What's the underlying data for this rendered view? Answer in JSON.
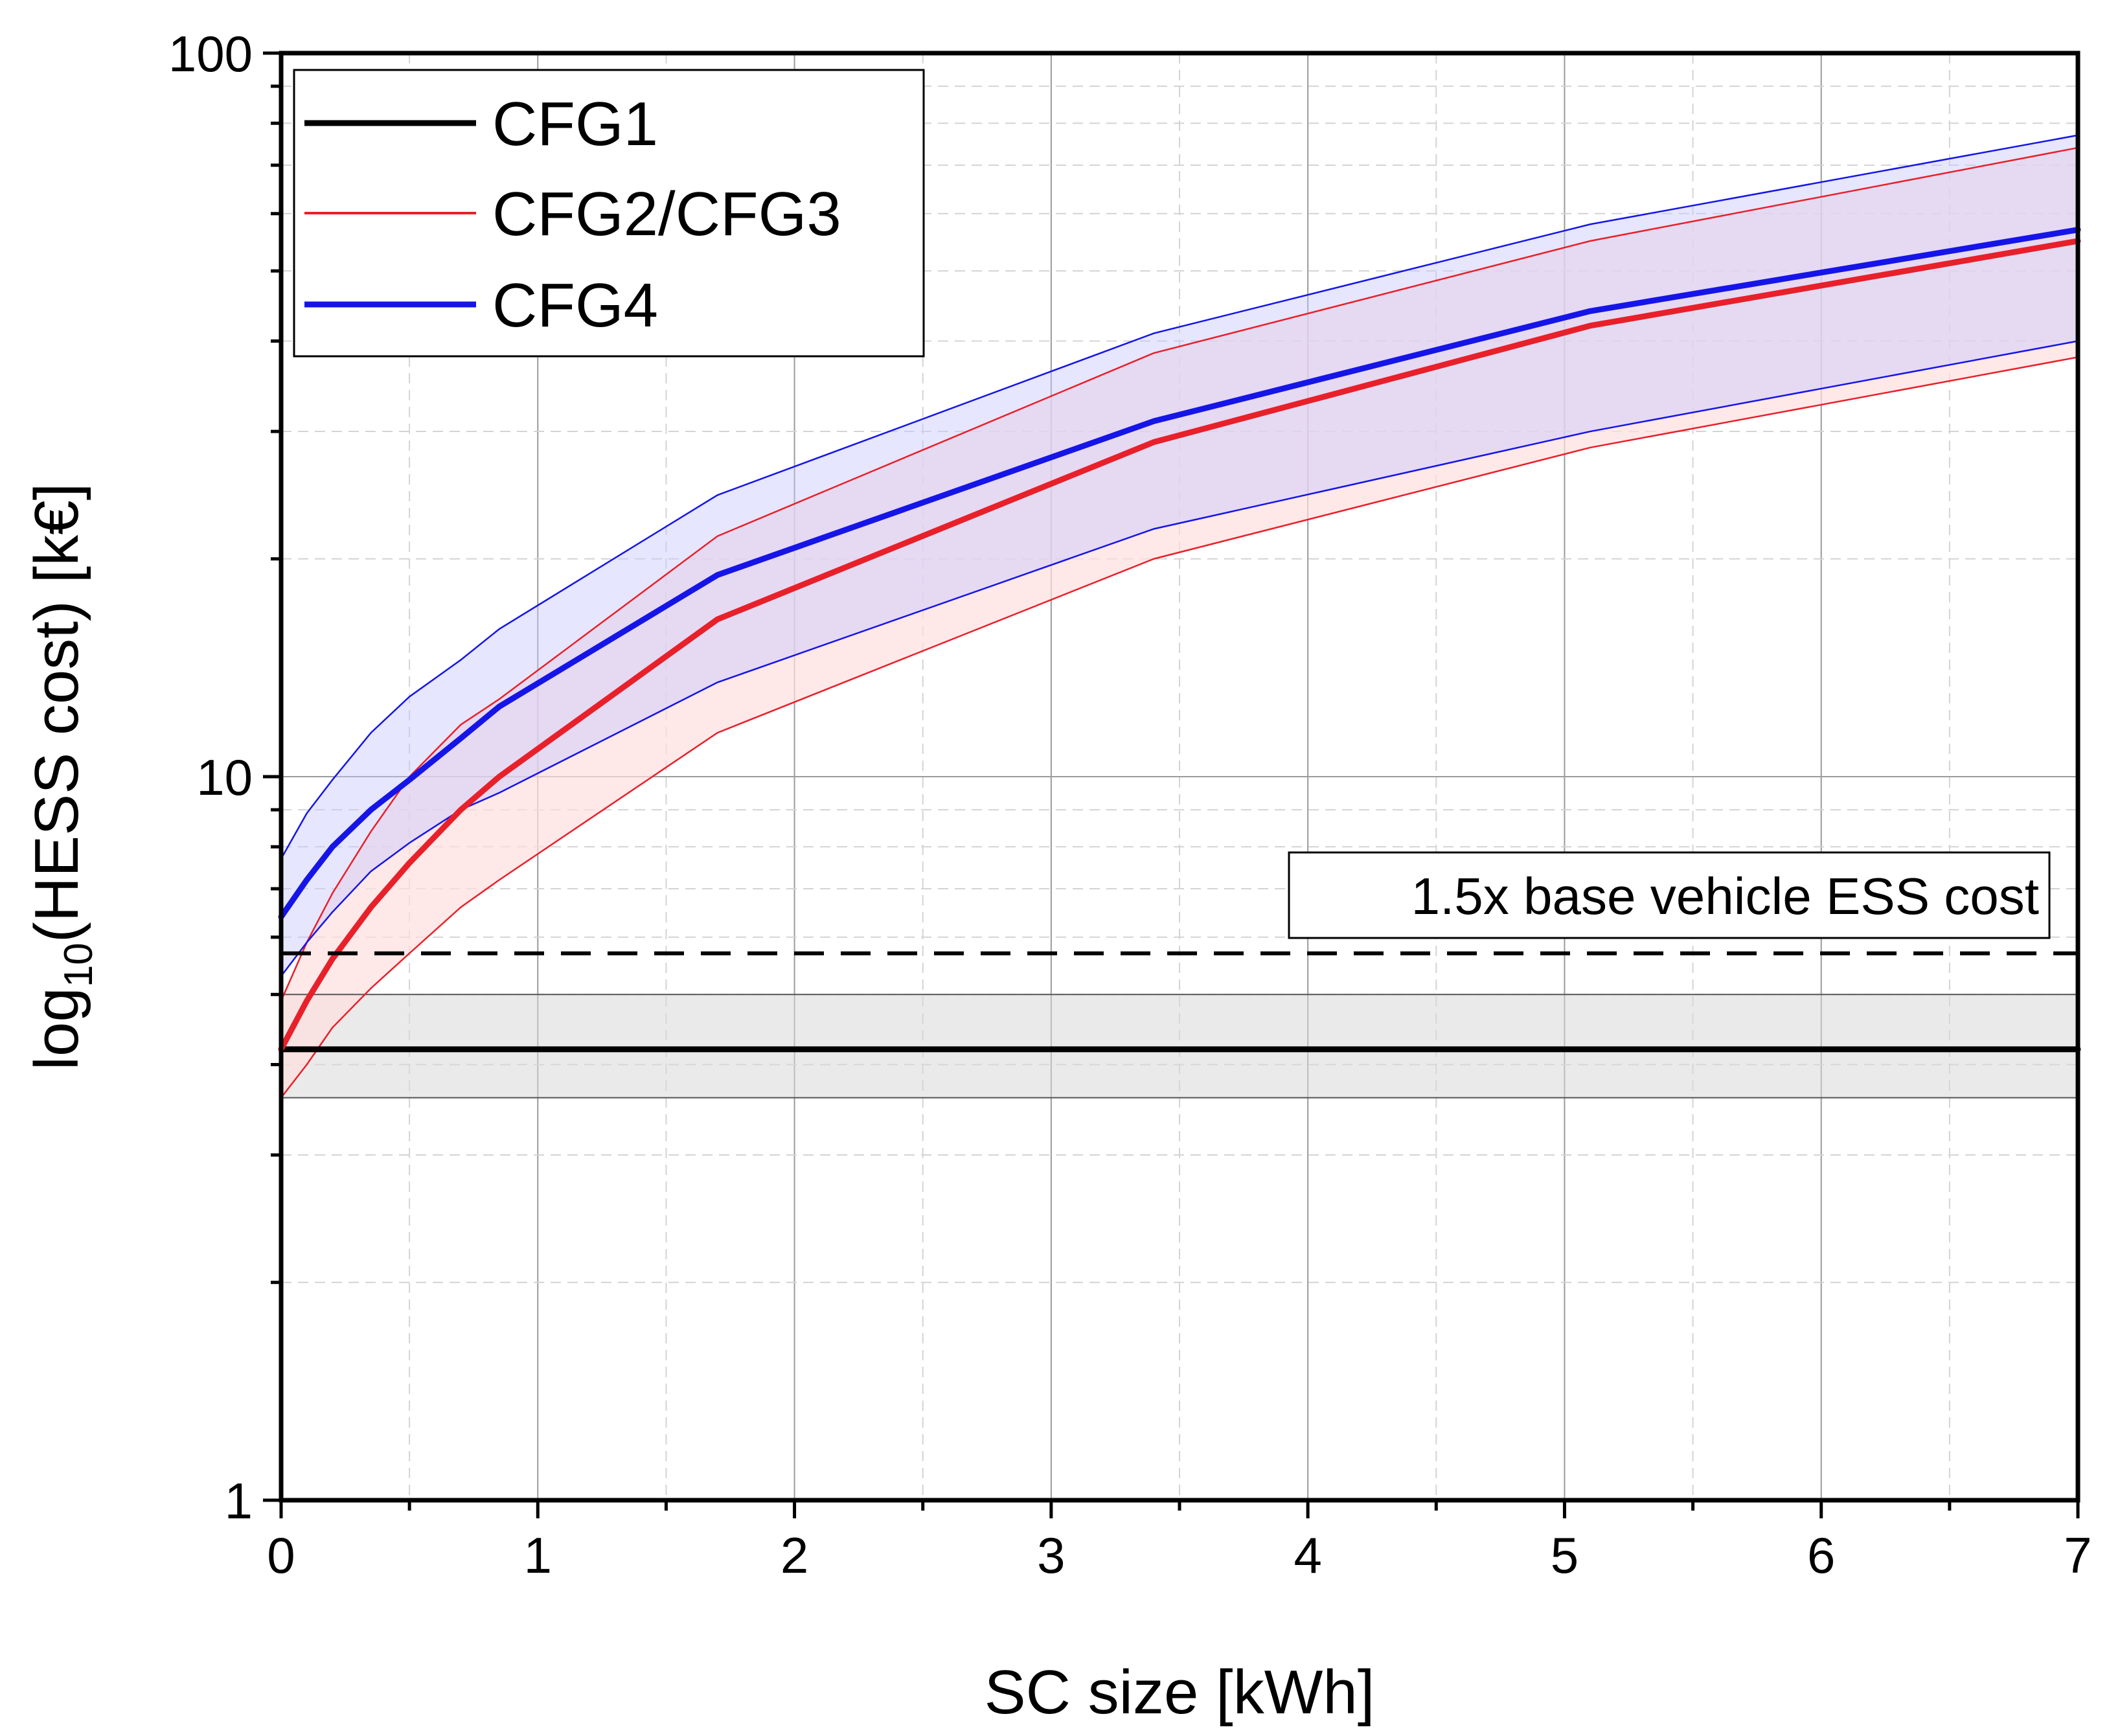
{
  "chart_data": {
    "type": "line",
    "xlabel": "SC size [kWh]",
    "ylabel_prefix": "log",
    "ylabel_subscript": "10",
    "ylabel_suffix": "(HESS cost) [k€]",
    "xlim": [
      0,
      7
    ],
    "ylim": [
      1,
      100
    ],
    "yscale": "log",
    "grid": true,
    "legend_position": "top-left",
    "x_ticks": [
      0,
      1,
      2,
      3,
      4,
      5,
      6,
      7
    ],
    "x_tick_labels": [
      "0",
      "1",
      "2",
      "3",
      "4",
      "5",
      "6",
      "7"
    ],
    "y_ticks": [
      1,
      10,
      100
    ],
    "y_tick_labels": [
      "1",
      "10",
      "100"
    ],
    "series": [
      {
        "name": "CFG1",
        "color": "#000000",
        "x": [
          0,
          7
        ],
        "y": [
          4.2,
          4.2
        ],
        "lower": [
          3.6,
          3.6
        ],
        "upper": [
          5.0,
          5.0
        ],
        "band_color": "#d8d8d8"
      },
      {
        "name": "CFG2/CFG3",
        "color": "#e8202a",
        "x": [
          0,
          0.1,
          0.2,
          0.35,
          0.5,
          0.7,
          0.85,
          1.7,
          3.4,
          5.1,
          7
        ],
        "y": [
          4.2,
          4.9,
          5.6,
          6.6,
          7.6,
          9.0,
          10.0,
          16.5,
          29,
          42,
          55
        ],
        "lower": [
          3.6,
          4.0,
          4.5,
          5.1,
          5.7,
          6.6,
          7.2,
          11.5,
          20,
          28.5,
          38
        ],
        "upper": [
          4.9,
          5.9,
          6.9,
          8.4,
          10.0,
          11.8,
          12.8,
          21.5,
          38.5,
          55,
          74
        ],
        "band_color": "#ffdede"
      },
      {
        "name": "CFG4",
        "color": "#1515e8",
        "x": [
          0,
          0.1,
          0.2,
          0.35,
          0.5,
          0.7,
          0.85,
          1.7,
          3.4,
          5.1,
          7
        ],
        "y": [
          6.4,
          7.2,
          8.0,
          9.0,
          9.9,
          11.3,
          12.5,
          19,
          31,
          44,
          57
        ],
        "lower": [
          5.3,
          5.9,
          6.5,
          7.4,
          8.1,
          9.0,
          9.5,
          13.5,
          22,
          30,
          40
        ],
        "upper": [
          7.7,
          8.9,
          9.9,
          11.5,
          12.9,
          14.5,
          16.0,
          24.5,
          41,
          58,
          77
        ],
        "band_color": "#c8c8ff"
      }
    ],
    "reference_line": {
      "y": 5.7,
      "style": "dashed",
      "label": "1.5x base vehicle ESS cost"
    }
  }
}
